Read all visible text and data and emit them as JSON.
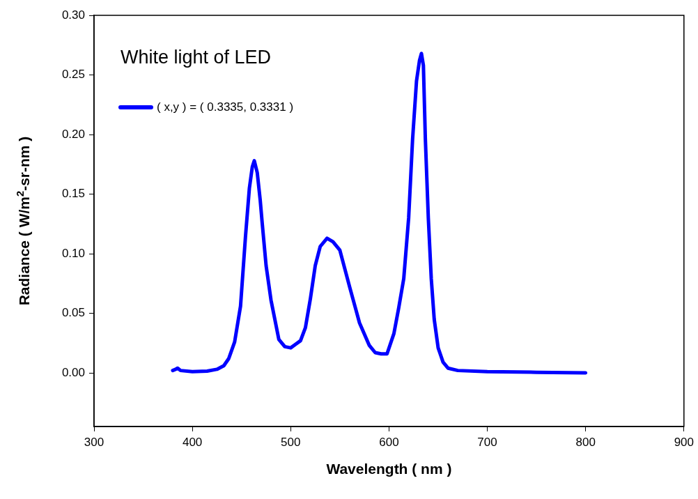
{
  "chart_data": {
    "type": "line",
    "xlabel": "Wavelength ( nm )",
    "ylabel": "Radiance ( W/m$^{2}$-sr-nm )",
    "annotations": [
      "White light of LED"
    ],
    "x": [
      380,
      383,
      385,
      388,
      400,
      415,
      425,
      432,
      437,
      443,
      449,
      454,
      458,
      461,
      463,
      466,
      469,
      471,
      475,
      480,
      488,
      494,
      500,
      505,
      510,
      515,
      520,
      525,
      530,
      537,
      543,
      550,
      560,
      570,
      580,
      586,
      592,
      598,
      605,
      610,
      615,
      620,
      624,
      628,
      631,
      633,
      635,
      637,
      640,
      643,
      646,
      650,
      655,
      660,
      670,
      700,
      750,
      800
    ],
    "series": [
      {
        "name": "( x,y ) = ( 0.3335, 0.3331 )",
        "color": "#0000ff",
        "values": [
          0.002,
          0.003,
          0.004,
          0.002,
          0.001,
          0.0015,
          0.003,
          0.006,
          0.012,
          0.026,
          0.056,
          0.114,
          0.155,
          0.173,
          0.178,
          0.168,
          0.145,
          0.126,
          0.09,
          0.061,
          0.028,
          0.022,
          0.021,
          0.024,
          0.027,
          0.038,
          0.062,
          0.09,
          0.106,
          0.113,
          0.11,
          0.103,
          0.072,
          0.042,
          0.023,
          0.017,
          0.016,
          0.016,
          0.033,
          0.055,
          0.079,
          0.13,
          0.196,
          0.245,
          0.262,
          0.268,
          0.258,
          0.196,
          0.13,
          0.079,
          0.045,
          0.021,
          0.009,
          0.004,
          0.002,
          0.001,
          0.0005,
          0
        ]
      }
    ],
    "xlim": [
      300,
      900
    ],
    "xticks": [
      300,
      400,
      500,
      600,
      700,
      800,
      900
    ],
    "ylim": [
      -0.045,
      0.3
    ],
    "yticks": [
      {
        "value": 0,
        "label": "0.00"
      },
      {
        "value": 0.05,
        "label": "0.05"
      },
      {
        "value": 0.1,
        "label": "0.10"
      },
      {
        "value": 0.15,
        "label": "0.15"
      },
      {
        "value": 0.2,
        "label": "0.20"
      },
      {
        "value": 0.25,
        "label": "0.25"
      },
      {
        "value": 0.3,
        "label": "0.30"
      }
    ],
    "grid": false,
    "legend": "top left",
    "marker": "none",
    "line_style": "solid"
  }
}
